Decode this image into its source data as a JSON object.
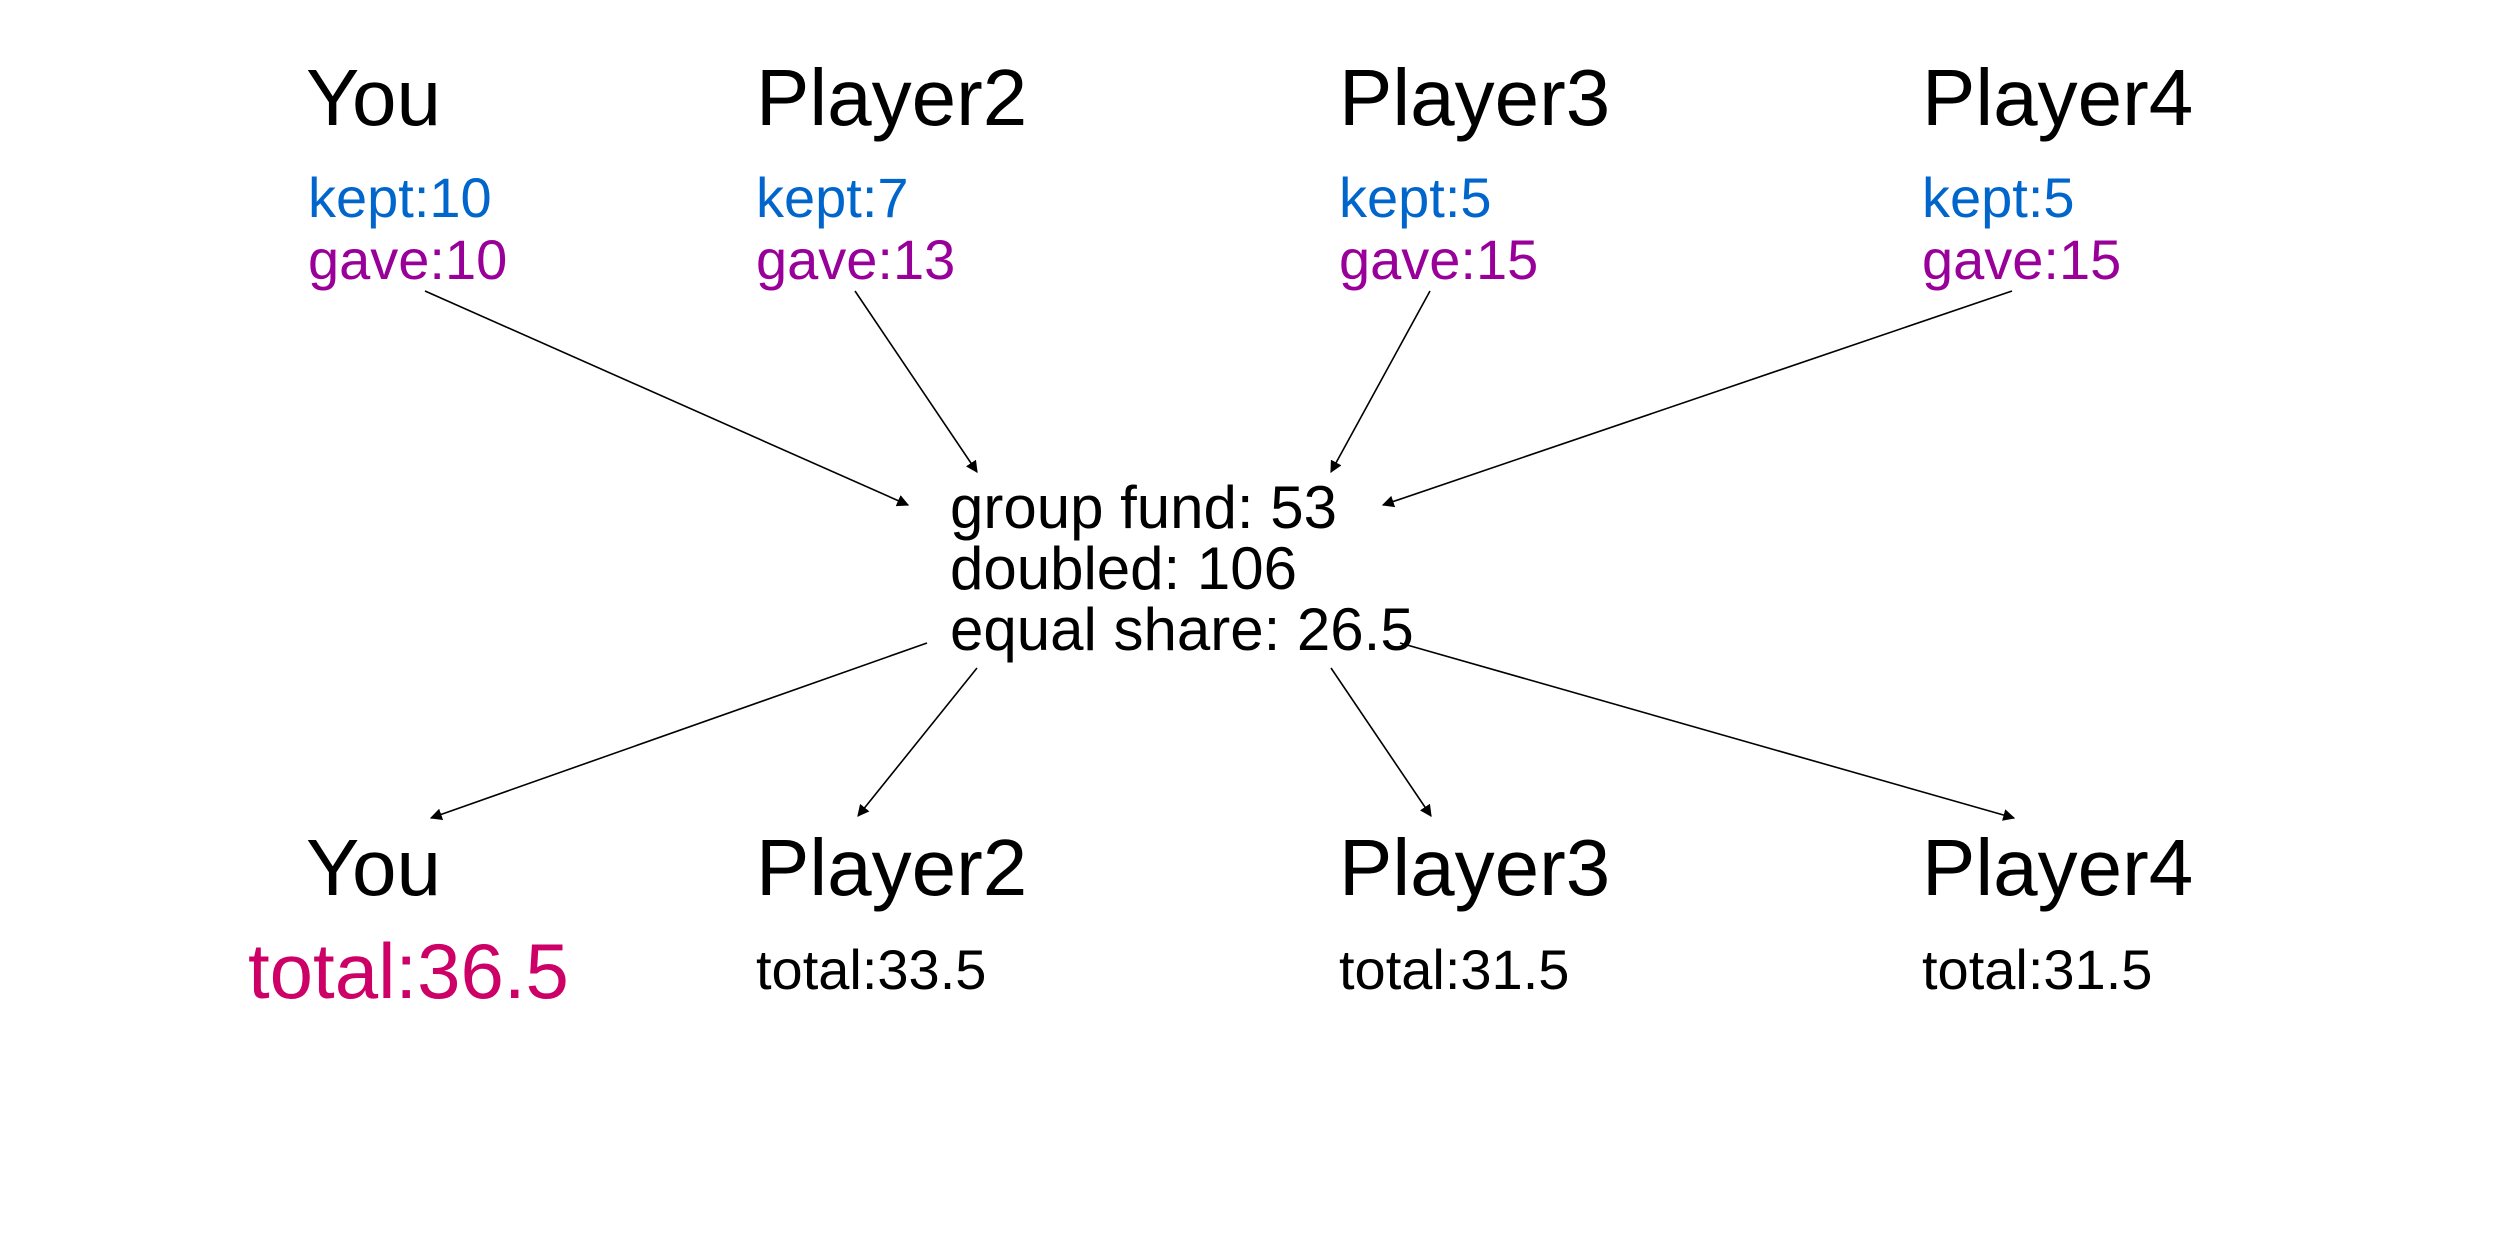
{
  "colors": {
    "kept": "#0066cc",
    "gave": "#990099",
    "your_total": "#cc0066",
    "default_text": "#000000",
    "arrow": "#000000"
  },
  "top_players": [
    {
      "name": "You",
      "kept": "kept:10",
      "gave": "gave:10"
    },
    {
      "name": "Player2",
      "kept": "kept:7",
      "gave": "gave:13"
    },
    {
      "name": "Player3",
      "kept": "kept:5",
      "gave": "gave:15"
    },
    {
      "name": "Player4",
      "kept": "kept:5",
      "gave": "gave:15"
    }
  ],
  "group_fund": {
    "fund": "group fund: 53",
    "doubled": "doubled: 106",
    "share": "equal share: 26.5"
  },
  "bottom_players": [
    {
      "name": "You",
      "total": "total:36.5"
    },
    {
      "name": "Player2",
      "total": "total:33.5"
    },
    {
      "name": "Player3",
      "total": "total:31.5"
    },
    {
      "name": "Player4",
      "total": "total:31.5"
    }
  ]
}
